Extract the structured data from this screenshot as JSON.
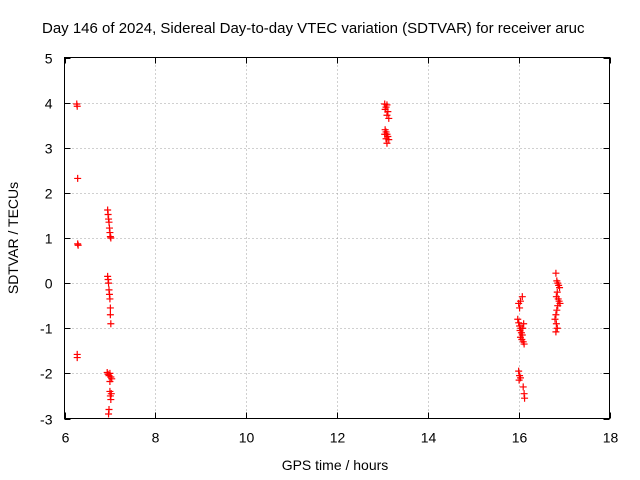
{
  "chart_data": {
    "type": "scatter",
    "title": "Day 146 of 2024, Sidereal Day-to-day VTEC variation (SDTVAR) for receiver aruc",
    "xlabel": "GPS time / hours",
    "ylabel": "SDTVAR / TECUs",
    "xlim": [
      6,
      18
    ],
    "ylim": [
      -3,
      5
    ],
    "xticks": [
      6,
      8,
      10,
      12,
      14,
      16,
      18
    ],
    "yticks": [
      -3,
      -2,
      -1,
      0,
      1,
      2,
      3,
      4,
      5
    ],
    "grid": true,
    "marker": "+",
    "colors": {
      "points": "#ff0000",
      "grid": "#a0a0a0",
      "frame": "#000000"
    },
    "series": [
      {
        "name": "SDTVAR",
        "points": [
          [
            6.27,
            3.97
          ],
          [
            6.28,
            3.92
          ],
          [
            6.29,
            2.32
          ],
          [
            6.29,
            0.87
          ],
          [
            6.3,
            0.84
          ],
          [
            6.28,
            -1.58
          ],
          [
            6.28,
            -1.65
          ],
          [
            6.95,
            1.62
          ],
          [
            6.96,
            1.52
          ],
          [
            6.97,
            1.42
          ],
          [
            6.98,
            1.35
          ],
          [
            6.99,
            1.22
          ],
          [
            7.0,
            1.12
          ],
          [
            7.01,
            1.03
          ],
          [
            7.02,
            1.0
          ],
          [
            6.95,
            0.15
          ],
          [
            6.96,
            0.08
          ],
          [
            6.97,
            0.0
          ],
          [
            6.98,
            -0.15
          ],
          [
            6.99,
            -0.25
          ],
          [
            7.0,
            -0.35
          ],
          [
            7.01,
            -0.55
          ],
          [
            7.01,
            -0.7
          ],
          [
            7.02,
            -0.9
          ],
          [
            6.94,
            -1.98
          ],
          [
            6.96,
            -2.02
          ],
          [
            6.98,
            -2.05
          ],
          [
            7.0,
            -2.0
          ],
          [
            7.02,
            -2.08
          ],
          [
            7.04,
            -2.12
          ],
          [
            7.0,
            -2.18
          ],
          [
            7.0,
            -2.4
          ],
          [
            7.01,
            -2.5
          ],
          [
            7.02,
            -2.58
          ],
          [
            7.03,
            -2.45
          ],
          [
            6.98,
            -2.8
          ],
          [
            6.97,
            -2.9
          ],
          [
            13.05,
            3.97
          ],
          [
            13.1,
            3.95
          ],
          [
            13.08,
            3.9
          ],
          [
            13.06,
            3.85
          ],
          [
            13.12,
            3.8
          ],
          [
            13.1,
            3.72
          ],
          [
            13.14,
            3.65
          ],
          [
            13.06,
            3.4
          ],
          [
            13.08,
            3.35
          ],
          [
            13.1,
            3.3
          ],
          [
            13.05,
            3.3
          ],
          [
            13.12,
            3.25
          ],
          [
            13.08,
            3.2
          ],
          [
            13.14,
            3.18
          ],
          [
            13.1,
            3.1
          ],
          [
            16.0,
            -0.45
          ],
          [
            16.04,
            -0.4
          ],
          [
            16.08,
            -0.3
          ],
          [
            16.02,
            -0.55
          ],
          [
            15.98,
            -0.8
          ],
          [
            16.0,
            -0.88
          ],
          [
            16.02,
            -0.95
          ],
          [
            16.05,
            -1.0
          ],
          [
            16.03,
            -1.05
          ],
          [
            16.06,
            -1.1
          ],
          [
            16.08,
            -1.15
          ],
          [
            16.04,
            -1.2
          ],
          [
            16.07,
            -1.25
          ],
          [
            16.1,
            -1.3
          ],
          [
            16.12,
            -1.35
          ],
          [
            16.09,
            -1.0
          ],
          [
            16.11,
            -0.9
          ],
          [
            16.0,
            -1.95
          ],
          [
            16.02,
            -2.05
          ],
          [
            16.04,
            -2.1
          ],
          [
            16.01,
            -2.15
          ],
          [
            16.1,
            -2.3
          ],
          [
            16.12,
            -2.45
          ],
          [
            16.13,
            -2.55
          ],
          [
            16.82,
            0.22
          ],
          [
            16.84,
            0.05
          ],
          [
            16.86,
            0.0
          ],
          [
            16.88,
            -0.05
          ],
          [
            16.9,
            -0.1
          ],
          [
            16.85,
            -0.2
          ],
          [
            16.83,
            -0.3
          ],
          [
            16.87,
            -0.35
          ],
          [
            16.89,
            -0.4
          ],
          [
            16.91,
            -0.45
          ],
          [
            16.86,
            -0.5
          ],
          [
            16.84,
            -0.6
          ],
          [
            16.82,
            -0.7
          ],
          [
            16.8,
            -0.8
          ],
          [
            16.83,
            -0.9
          ],
          [
            16.85,
            -1.0
          ],
          [
            16.82,
            -1.08
          ]
        ]
      }
    ]
  }
}
